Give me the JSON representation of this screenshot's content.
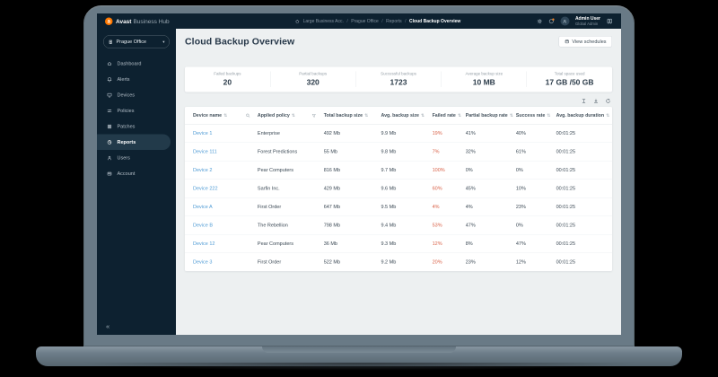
{
  "brand": {
    "logo_letter": "a",
    "bold": "Avast",
    "rest": "Business Hub"
  },
  "topbar": {
    "breadcrumb": [
      "Large Business Acc.",
      "Prague Office",
      "Reports",
      "Cloud Backup Overview"
    ],
    "user": {
      "name": "Admin User",
      "role": "Global Admin"
    }
  },
  "sidebar": {
    "location_selector": "Prague Office",
    "items": [
      {
        "label": "Dashboard",
        "icon": "dashboard",
        "active": false
      },
      {
        "label": "Alerts",
        "icon": "alerts",
        "active": false
      },
      {
        "label": "Devices",
        "icon": "devices",
        "active": false
      },
      {
        "label": "Policies",
        "icon": "policies",
        "active": false
      },
      {
        "label": "Patches",
        "icon": "patches",
        "active": false
      },
      {
        "label": "Reports",
        "icon": "reports",
        "active": true
      },
      {
        "label": "Users",
        "icon": "users",
        "active": false
      },
      {
        "label": "Account",
        "icon": "account",
        "active": false
      }
    ]
  },
  "main": {
    "title": "Cloud Backup Overview",
    "actions": {
      "view_schedules": "View schedules"
    },
    "stats": [
      {
        "label": "Failed backups",
        "value": "20"
      },
      {
        "label": "Partial backups",
        "value": "320"
      },
      {
        "label": "Successful backups",
        "value": "1723"
      },
      {
        "label": "Average backup size",
        "value": "10 MB"
      },
      {
        "label": "Total space used",
        "value": "17 GB /50 GB"
      }
    ],
    "toolbar_icons": [
      "columns-icon",
      "export-icon",
      "refresh-icon"
    ],
    "table": {
      "columns": [
        {
          "label": "Device name",
          "sortable": true,
          "extra": "search"
        },
        {
          "label": "Applied policy",
          "sortable": true,
          "extra": "filter"
        },
        {
          "label": "Total backup size",
          "sortable": true
        },
        {
          "label": "Avg. backup size",
          "sortable": true
        },
        {
          "label": "Failed rate",
          "sortable": true
        },
        {
          "label": "Partial backup rate",
          "sortable": true
        },
        {
          "label": "Success rate",
          "sortable": true
        },
        {
          "label": "Avg. backup duration",
          "sortable": true
        }
      ],
      "rows": [
        {
          "device": "Device 1",
          "policy": "Enterprise",
          "total": "492 Mb",
          "avg": "9.9 Mb",
          "failed": "19%",
          "partial": "41%",
          "success": "40%",
          "duration": "00:01:25"
        },
        {
          "device": "Device 111",
          "policy": "Forest Predictions",
          "total": "55 Mb",
          "avg": "9.8 Mb",
          "failed": "7%",
          "partial": "32%",
          "success": "61%",
          "duration": "00:01:25"
        },
        {
          "device": "Device 2",
          "policy": "Pear Computers",
          "total": "816 Mb",
          "avg": "9.7 Mb",
          "failed": "100%",
          "partial": "0%",
          "success": "0%",
          "duration": "00:01:25"
        },
        {
          "device": "Device 222",
          "policy": "Sarfin Inc.",
          "total": "429 Mb",
          "avg": "9.6 Mb",
          "failed": "60%",
          "partial": "45%",
          "success": "10%",
          "duration": "00:01:25"
        },
        {
          "device": "Device A",
          "policy": "First Order",
          "total": "647 Mb",
          "avg": "9.5 Mb",
          "failed": "4%",
          "partial": "4%",
          "success": "23%",
          "duration": "00:01:25"
        },
        {
          "device": "Device B",
          "policy": "The Rebellion",
          "total": "798 Mb",
          "avg": "9.4 Mb",
          "failed": "53%",
          "partial": "47%",
          "success": "0%",
          "duration": "00:01:25"
        },
        {
          "device": "Device 12",
          "policy": "Pear Computers",
          "total": "36 Mb",
          "avg": "9.3 Mb",
          "failed": "12%",
          "partial": "8%",
          "success": "47%",
          "duration": "00:01:25"
        },
        {
          "device": "Device 3",
          "policy": "First Order",
          "total": "522 Mb",
          "avg": "9.2 Mb",
          "failed": "20%",
          "partial": "23%",
          "success": "12%",
          "duration": "00:01:25"
        }
      ]
    }
  },
  "icons": {
    "sort_glyph": "⇅",
    "chevron_down": "▾",
    "collapse": "«",
    "breadcrumb_separator": "/"
  },
  "colors": {
    "accent_orange": "#ff7800",
    "dark_navy": "#0d2130",
    "link_blue": "#4f9bd5",
    "failed_red": "#d96147",
    "main_bg": "#edf0f1"
  }
}
